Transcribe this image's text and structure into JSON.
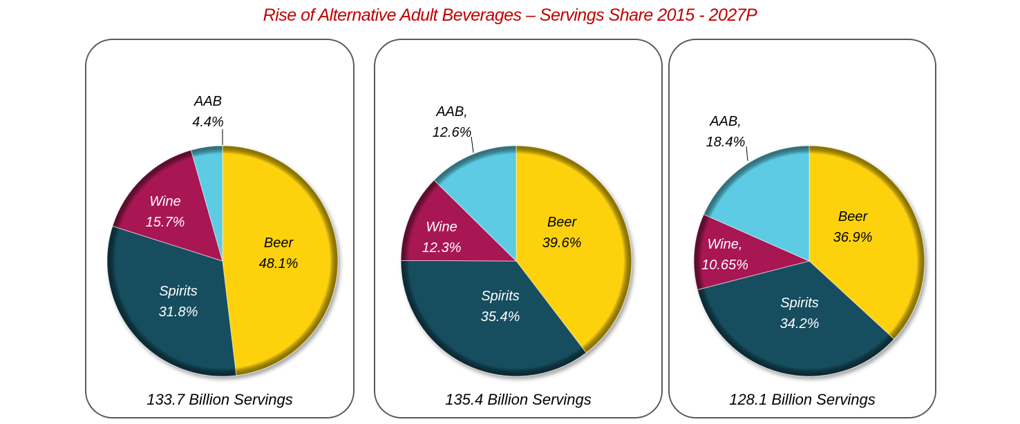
{
  "title": "Rise of Alternative Adult Beverages – Servings Share 2015 - 2027P",
  "colors": {
    "Beer": "#fdd209",
    "Spirits": "#154d5e",
    "Wine": "#a81952",
    "AAB": "#5bcbe3",
    "title": "#c00000"
  },
  "chart_data": [
    {
      "type": "pie",
      "title": "Rise of Alternative Adult Beverages – Servings Share 2015 - 2027P",
      "total_label": "133.7 Billion Servings",
      "slices": [
        {
          "name": "Beer",
          "label": "Beer",
          "value": 48.1,
          "value_label": "48.1%"
        },
        {
          "name": "Spirits",
          "label": "Spirits",
          "value": 31.8,
          "value_label": "31.8%"
        },
        {
          "name": "Wine",
          "label": "Wine",
          "value": 15.7,
          "value_label": "15.7%"
        },
        {
          "name": "AAB",
          "label": "AAB",
          "value": 4.4,
          "value_label": "4.4%"
        }
      ]
    },
    {
      "type": "pie",
      "title": "Rise of Alternative Adult Beverages – Servings Share 2015 - 2027P",
      "total_label": "135.4 Billion Servings",
      "slices": [
        {
          "name": "Beer",
          "label": "Beer",
          "value": 39.6,
          "value_label": "39.6%"
        },
        {
          "name": "Spirits",
          "label": "Spirits",
          "value": 35.4,
          "value_label": "35.4%"
        },
        {
          "name": "Wine",
          "label": "Wine",
          "value": 12.3,
          "value_label": "12.3%"
        },
        {
          "name": "AAB",
          "label": "AAB,",
          "value": 12.6,
          "value_label": "12.6%"
        }
      ]
    },
    {
      "type": "pie",
      "title": "Rise of Alternative Adult Beverages – Servings Share 2015 - 2027P",
      "total_label": "128.1 Billion Servings",
      "slices": [
        {
          "name": "Beer",
          "label": "Beer",
          "value": 36.9,
          "value_label": "36.9%"
        },
        {
          "name": "Spirits",
          "label": "Spirits",
          "value": 34.2,
          "value_label": "34.2%"
        },
        {
          "name": "Wine",
          "label": "Wine,",
          "value": 10.65,
          "value_label": "10.65%"
        },
        {
          "name": "AAB",
          "label": "AAB,",
          "value": 18.4,
          "value_label": "18.4%"
        }
      ]
    }
  ]
}
